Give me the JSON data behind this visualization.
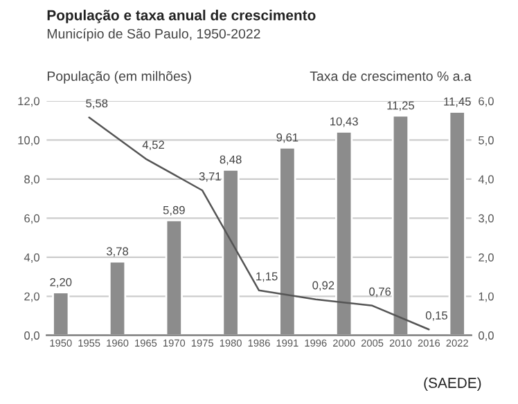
{
  "chart_data": {
    "type": "bar",
    "title": "População e taxa anual de crescimento",
    "subtitle": "Município de São Paulo, 1950-2022",
    "ylabel": "População (em milhões)",
    "y2label": "Taxa de crescimento % a.a",
    "categories": [
      "1950",
      "1955",
      "1960",
      "1965",
      "1970",
      "1975",
      "1980",
      "1986",
      "1991",
      "1996",
      "2000",
      "2005",
      "2010",
      "2016",
      "2022"
    ],
    "series": [
      {
        "color": "#8c8c8c",
        "values": [
          2.2,
          null,
          3.78,
          null,
          5.89,
          null,
          8.48,
          null,
          9.61,
          null,
          10.43,
          null,
          11.25,
          null,
          11.45
        ],
        "value_labels": [
          "2,20",
          null,
          "3,78",
          null,
          "5,89",
          null,
          "8,48",
          null,
          "9,61",
          null,
          "10,43",
          null,
          "11,25",
          null,
          "11,45"
        ]
      },
      {
        "type": "line",
        "axis": "y2",
        "color": "#555555",
        "values": [
          null,
          5.58,
          null,
          4.52,
          null,
          3.71,
          null,
          1.15,
          null,
          0.92,
          null,
          0.76,
          null,
          0.15,
          null
        ],
        "value_labels": [
          null,
          "5,58",
          null,
          "4,52",
          null,
          "3,71",
          null,
          "1,15",
          null,
          "0,92",
          null,
          "0,76",
          null,
          "0,15",
          null
        ]
      }
    ],
    "ylim": [
      0,
      12
    ],
    "yticks": [
      {
        "value": 0,
        "label": "0,0"
      },
      {
        "value": 2,
        "label": "2,0"
      },
      {
        "value": 4,
        "label": "4,0"
      },
      {
        "value": 6,
        "label": "6,0"
      },
      {
        "value": 8,
        "label": "8,0"
      },
      {
        "value": 10,
        "label": "10,0"
      },
      {
        "value": 12,
        "label": "12,0"
      }
    ],
    "y2lim": [
      0,
      6
    ],
    "y2ticks": [
      {
        "value": 0,
        "label": "0,0"
      },
      {
        "value": 1,
        "label": "1,0"
      },
      {
        "value": 2,
        "label": "2,0"
      },
      {
        "value": 3,
        "label": "3,0"
      },
      {
        "value": 4,
        "label": "4,0"
      },
      {
        "value": 5,
        "label": "5,0"
      },
      {
        "value": 6,
        "label": "6,0"
      }
    ],
    "grid": "y",
    "marker": "none",
    "line_style": "solid",
    "annotations": [
      "(SAEDE)"
    ]
  }
}
